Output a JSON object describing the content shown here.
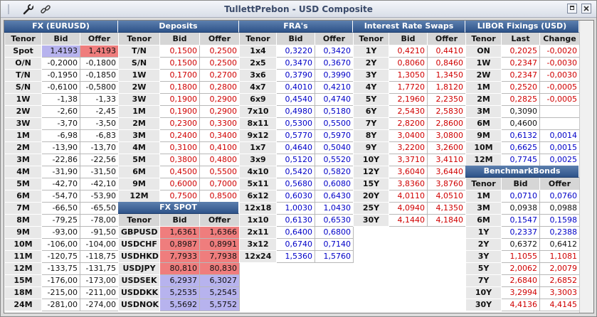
{
  "window": {
    "title": "TullettPrebon - USD Composite"
  },
  "colors": {
    "header_blue": "#2e5389",
    "red_text": "#d00000",
    "blue_text": "#0000c8",
    "bid_highlight": "#b7b3ee",
    "offer_highlight": "#ef7d7d"
  },
  "fx": {
    "title": "FX (EURUSD)",
    "cols": [
      "Tenor",
      "Bid",
      "Offer"
    ],
    "rows": [
      [
        "Spot",
        "1,4193",
        "1,4193"
      ],
      [
        "O/N",
        "-0,2000",
        "-0,1800"
      ],
      [
        "T/N",
        "-0,1950",
        "-0,1850"
      ],
      [
        "S/N",
        "-0,6100",
        "-0,5800"
      ],
      [
        "1W",
        "-1,38",
        "-1,33"
      ],
      [
        "2W",
        "-2,60",
        "-2,45"
      ],
      [
        "3W",
        "-3,70",
        "-3,50"
      ],
      [
        "1M",
        "-6,98",
        "-6,83"
      ],
      [
        "2M",
        "-13,90",
        "-13,70"
      ],
      [
        "3M",
        "-22,86",
        "-22,56"
      ],
      [
        "4M",
        "-31,90",
        "-31,50"
      ],
      [
        "5M",
        "-42,70",
        "-42,10"
      ],
      [
        "6M",
        "-54,70",
        "-53,90"
      ],
      [
        "7M",
        "-66,50",
        "-65,50"
      ],
      [
        "8M",
        "-79,25",
        "-78,00"
      ],
      [
        "9M",
        "-93,00",
        "-91,50"
      ],
      [
        "10M",
        "-106,00",
        "-104,00"
      ],
      [
        "11M",
        "-120,75",
        "-118,75"
      ],
      [
        "12M",
        "-133,75",
        "-131,75"
      ],
      [
        "15M",
        "-176,00",
        "-173,00"
      ],
      [
        "18M",
        "-215,00",
        "-211,00"
      ],
      [
        "24M",
        "-281,00",
        "-274,00"
      ]
    ]
  },
  "deposits": {
    "title": "Deposits",
    "cols": [
      "Tenor",
      "Bid",
      "Offer"
    ],
    "rows": [
      [
        "T/N",
        "0,1500",
        "0,2500"
      ],
      [
        "S/N",
        "0,1500",
        "0,2500"
      ],
      [
        "1W",
        "0,1700",
        "0,2700"
      ],
      [
        "2W",
        "0,1800",
        "0,2800"
      ],
      [
        "3W",
        "0,1900",
        "0,2900"
      ],
      [
        "1M",
        "0,1900",
        "0,2900"
      ],
      [
        "2M",
        "0,2300",
        "0,3300"
      ],
      [
        "3M",
        "0,2400",
        "0,3400"
      ],
      [
        "4M",
        "0,3100",
        "0,4100"
      ],
      [
        "5M",
        "0,3800",
        "0,4800"
      ],
      [
        "6M",
        "0,4500",
        "0,5500"
      ],
      [
        "9M",
        "0,6000",
        "0,7000"
      ],
      [
        "12M",
        "0,7500",
        "0,8500"
      ]
    ]
  },
  "fxspot": {
    "title": "FX SPOT",
    "cols": [
      "Tenor",
      "Bid",
      "Offer"
    ],
    "rows": [
      [
        "GBPUSD",
        "1,6361",
        "1,6366"
      ],
      [
        "USDCHF",
        "0,8987",
        "0,8991"
      ],
      [
        "USDHKD",
        "7,7933",
        "7,7938"
      ],
      [
        "USDJPY",
        "80,810",
        "80,830"
      ],
      [
        "USDSEK",
        "6,2937",
        "6,3027"
      ],
      [
        "USDDKK",
        "5,2535",
        "5,2545"
      ],
      [
        "USDNOK",
        "5,5692",
        "5,5752"
      ]
    ]
  },
  "fras": {
    "title": "FRA's",
    "cols": [
      "Tenor",
      "Bid",
      "Offer"
    ],
    "rows": [
      [
        "1x4",
        "0,3220",
        "0,3420"
      ],
      [
        "2x5",
        "0,3470",
        "0,3670"
      ],
      [
        "3x6",
        "0,3790",
        "0,3990"
      ],
      [
        "4x7",
        "0,4010",
        "0,4210"
      ],
      [
        "6x9",
        "0,4540",
        "0,4740"
      ],
      [
        "7x10",
        "0,4980",
        "0,5180"
      ],
      [
        "8x11",
        "0,5300",
        "0,5500"
      ],
      [
        "9x12",
        "0,5770",
        "0,5970"
      ],
      [
        "1x7",
        "0,4640",
        "0,5040"
      ],
      [
        "3x9",
        "0,5120",
        "0,5520"
      ],
      [
        "4x10",
        "0,5420",
        "0,5820"
      ],
      [
        "5x11",
        "0,5680",
        "0,6080"
      ],
      [
        "6x12",
        "0,6030",
        "0,6430"
      ],
      [
        "12x18",
        "1,0030",
        "1,0430"
      ],
      [
        "1x10",
        "0,6130",
        "0,6530"
      ],
      [
        "2x11",
        "0,6400",
        "0,6800"
      ],
      [
        "3x12",
        "0,6740",
        "0,7140"
      ],
      [
        "12x24",
        "1,5360",
        "1,5760"
      ]
    ]
  },
  "irs": {
    "title": "Interest Rate Swaps",
    "cols": [
      "Tenor",
      "Bid",
      "Offer"
    ],
    "rows": [
      [
        "1Y",
        "0,4210",
        "0,4410"
      ],
      [
        "2Y",
        "0,8060",
        "0,8460"
      ],
      [
        "3Y",
        "1,3050",
        "1,3450"
      ],
      [
        "4Y",
        "1,7720",
        "1,8120"
      ],
      [
        "5Y",
        "2,1960",
        "2,2350"
      ],
      [
        "6Y",
        "2,5430",
        "2,5830"
      ],
      [
        "7Y",
        "2,8200",
        "2,8600"
      ],
      [
        "8Y",
        "3,0400",
        "3,0800"
      ],
      [
        "9Y",
        "3,2200",
        "3,2600"
      ],
      [
        "10Y",
        "3,3710",
        "3,4110"
      ],
      [
        "12Y",
        "3,6040",
        "3,6440"
      ],
      [
        "15Y",
        "3,8360",
        "3,8760"
      ],
      [
        "20Y",
        "4,0110",
        "4,0510"
      ],
      [
        "25Y",
        "4,0940",
        "4,1350"
      ],
      [
        "30Y",
        "4,1440",
        "4,1840"
      ]
    ]
  },
  "libor": {
    "title": "LIBOR Fixings (USD)",
    "cols": [
      "Tenor",
      "Last",
      "Change"
    ],
    "rows": [
      [
        "ON",
        "0,2025",
        "-0,0020"
      ],
      [
        "1W",
        "0,2347",
        "-0,0030"
      ],
      [
        "2W",
        "0,2347",
        "-0,0030"
      ],
      [
        "1M",
        "0,2520",
        "-0,0005"
      ],
      [
        "2M",
        "0,2825",
        "-0,0005"
      ],
      [
        "3M",
        "0,3090",
        ""
      ],
      [
        "6M",
        "0,4600",
        ""
      ],
      [
        "9M",
        "0,6132",
        "0,0014"
      ],
      [
        "10M",
        "0,6625",
        "0,0015"
      ],
      [
        "12M",
        "0,7745",
        "0,0025"
      ]
    ]
  },
  "bonds": {
    "title": "BenchmarkBonds",
    "cols": [
      "Tenor",
      "Bid",
      "Offer"
    ],
    "rows": [
      [
        "1M",
        "0,0710",
        "0,0760"
      ],
      [
        "3M",
        "0,0938",
        "0,0988"
      ],
      [
        "6M",
        "0,1547",
        "0,1598"
      ],
      [
        "1Y",
        "0,2337",
        "0,2388"
      ],
      [
        "2Y",
        "0,6372",
        "0,6412"
      ],
      [
        "3Y",
        "1,1055",
        "1,1081"
      ],
      [
        "5Y",
        "2,0062",
        "2,0079"
      ],
      [
        "7Y",
        "2,6840",
        "2,6852"
      ],
      [
        "10Y",
        "3,2994",
        "3,3003"
      ],
      [
        "30Y",
        "4,4136",
        "4,4145"
      ]
    ]
  }
}
